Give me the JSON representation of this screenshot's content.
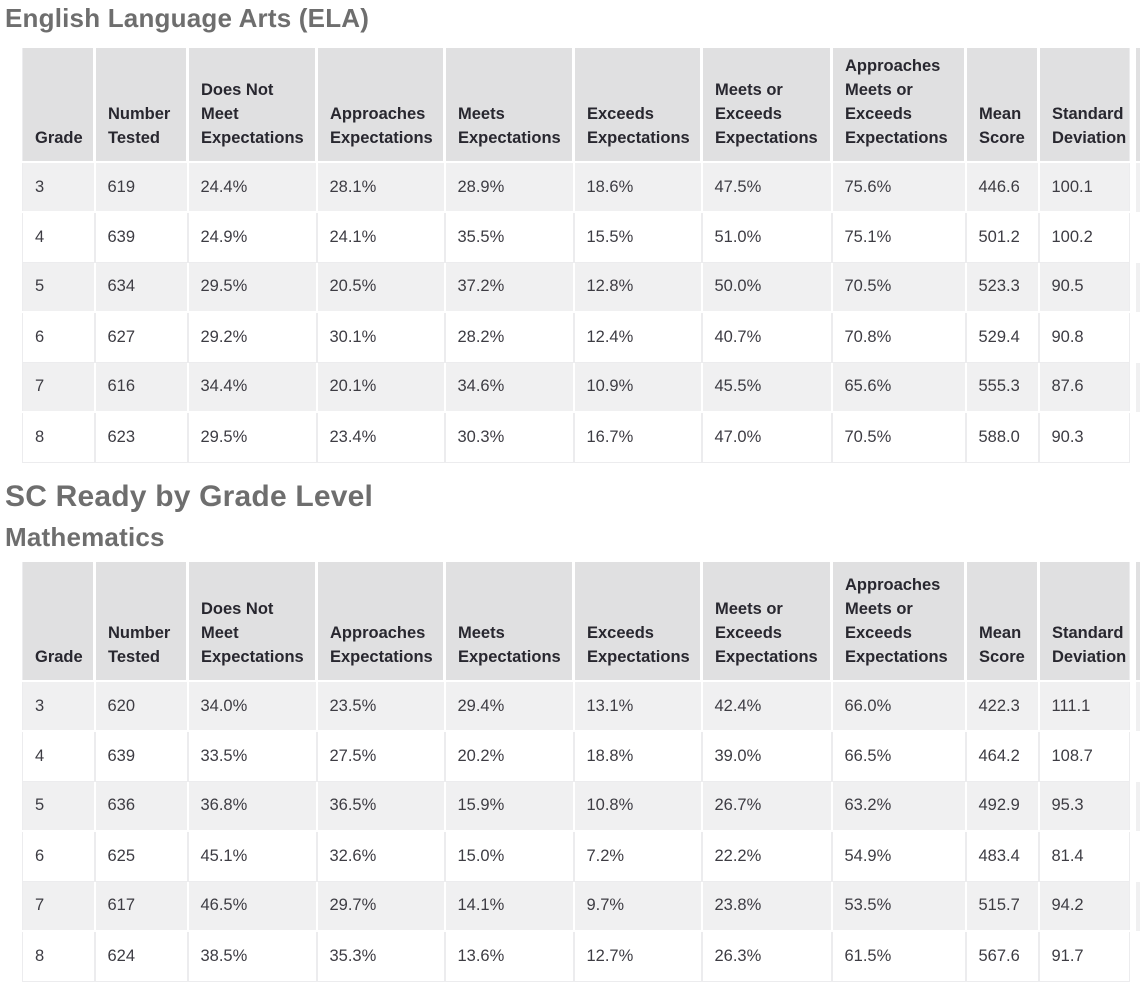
{
  "headings": {
    "ela": "English Language Arts (ELA)",
    "sc_ready": "SC Ready by Grade Level",
    "math": "Mathematics"
  },
  "columns": [
    "Grade",
    "Number\nTested",
    "Does Not\nMeet\nExpectations",
    "Approaches\nExpectations",
    "Meets\nExpectations",
    "Exceeds\nExpectations",
    "Meets or\nExceeds\nExpectations",
    "Approaches\nMeets or\nExceeds\nExpectations",
    "Mean\nScore",
    "Standard\nDeviation"
  ],
  "tables": {
    "ela": {
      "name": "English Language Arts (ELA)",
      "rows": [
        [
          "3",
          "619",
          "24.4%",
          "28.1%",
          "28.9%",
          "18.6%",
          "47.5%",
          "75.6%",
          "446.6",
          "100.1"
        ],
        [
          "4",
          "639",
          "24.9%",
          "24.1%",
          "35.5%",
          "15.5%",
          "51.0%",
          "75.1%",
          "501.2",
          "100.2"
        ],
        [
          "5",
          "634",
          "29.5%",
          "20.5%",
          "37.2%",
          "12.8%",
          "50.0%",
          "70.5%",
          "523.3",
          "90.5"
        ],
        [
          "6",
          "627",
          "29.2%",
          "30.1%",
          "28.2%",
          "12.4%",
          "40.7%",
          "70.8%",
          "529.4",
          "90.8"
        ],
        [
          "7",
          "616",
          "34.4%",
          "20.1%",
          "34.6%",
          "10.9%",
          "45.5%",
          "65.6%",
          "555.3",
          "87.6"
        ],
        [
          "8",
          "623",
          "29.5%",
          "23.4%",
          "30.3%",
          "16.7%",
          "47.0%",
          "70.5%",
          "588.0",
          "90.3"
        ]
      ]
    },
    "math": {
      "name": "Mathematics",
      "rows": [
        [
          "3",
          "620",
          "34.0%",
          "23.5%",
          "29.4%",
          "13.1%",
          "42.4%",
          "66.0%",
          "422.3",
          "111.1"
        ],
        [
          "4",
          "639",
          "33.5%",
          "27.5%",
          "20.2%",
          "18.8%",
          "39.0%",
          "66.5%",
          "464.2",
          "108.7"
        ],
        [
          "5",
          "636",
          "36.8%",
          "36.5%",
          "15.9%",
          "10.8%",
          "26.7%",
          "63.2%",
          "492.9",
          "95.3"
        ],
        [
          "6",
          "625",
          "45.1%",
          "32.6%",
          "15.0%",
          "7.2%",
          "22.2%",
          "54.9%",
          "483.4",
          "81.4"
        ],
        [
          "7",
          "617",
          "46.5%",
          "29.7%",
          "14.1%",
          "9.7%",
          "23.8%",
          "53.5%",
          "515.7",
          "94.2"
        ],
        [
          "8",
          "624",
          "38.5%",
          "35.3%",
          "13.6%",
          "12.7%",
          "26.3%",
          "61.5%",
          "567.6",
          "91.7"
        ]
      ]
    }
  },
  "colors": {
    "header_bg": "#e0e0e1",
    "row_stripe": "#f0f0f1",
    "row_plain": "#ffffff",
    "heading_text": "#6e6e6e",
    "header_text": "#28272f",
    "cell_text": "#3d3c43",
    "cell_border": "#ececee"
  }
}
